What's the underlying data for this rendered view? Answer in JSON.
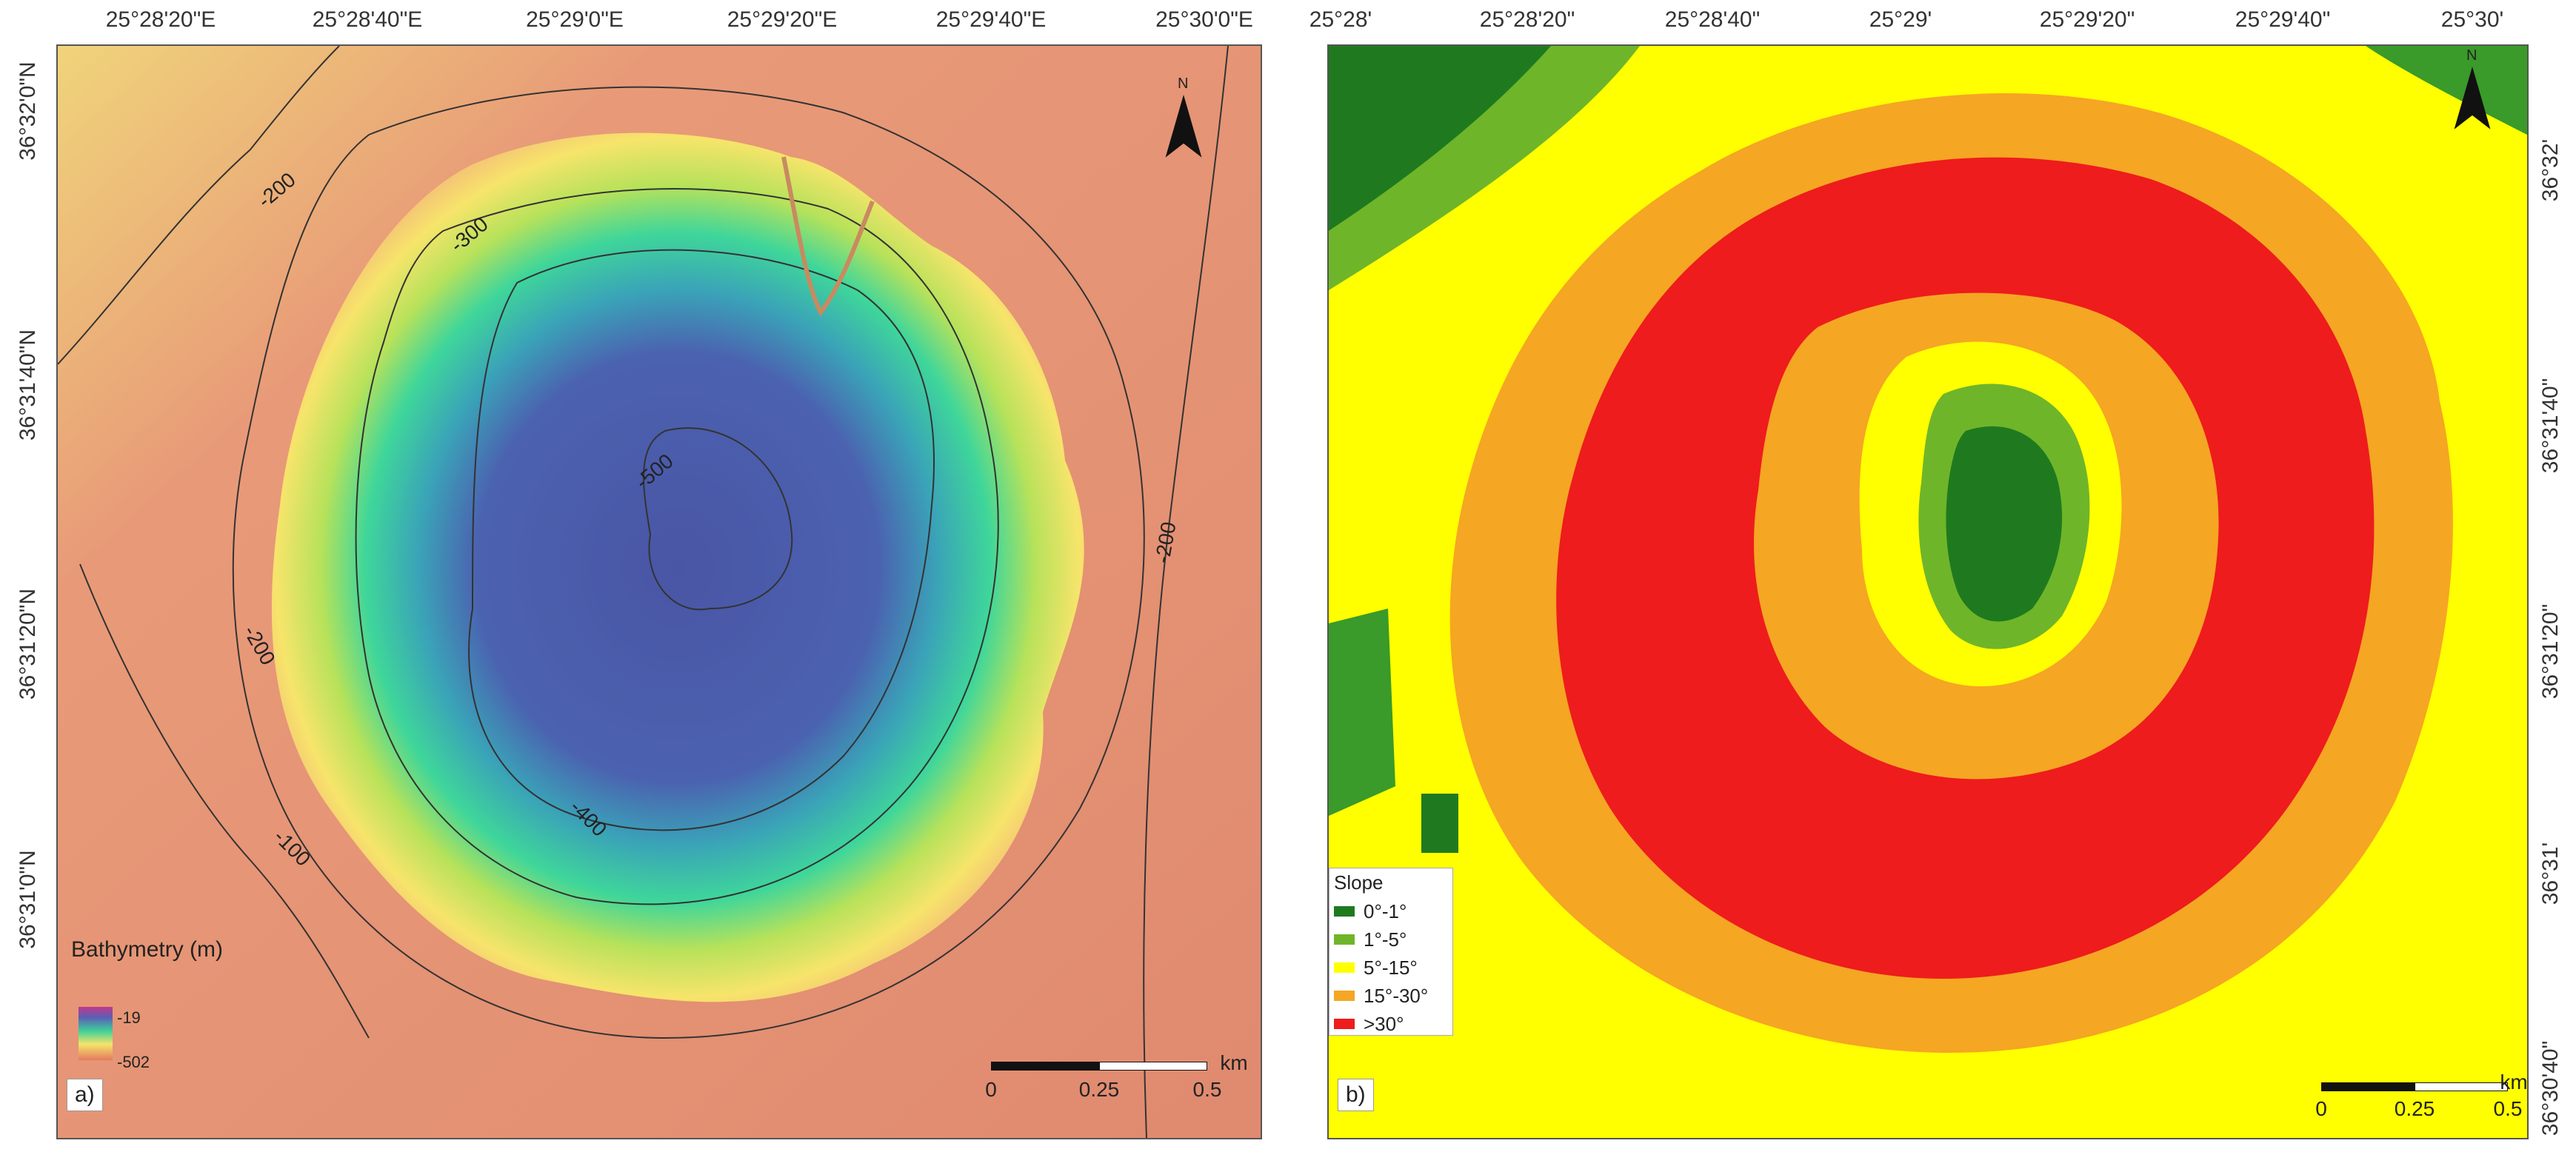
{
  "panel_a": {
    "letter": "a)",
    "top_ticks": [
      "25°28'20\"E",
      "25°28'40\"E",
      "25°29'0\"E",
      "25°29'20\"E",
      "25°29'40\"E",
      "25°30'0\"E"
    ],
    "left_ticks": [
      "36°32'0\"N",
      "36°31'40\"N",
      "36°31'20\"N",
      "36°31'0\"N"
    ],
    "legend_title": "Bathymetry (m)",
    "legend_max": "-19",
    "legend_min": "-502",
    "contours": [
      "-200",
      "-300",
      "-500",
      "-200",
      "-200",
      "-100",
      "-400"
    ],
    "scale_unit": "km",
    "scale_labels": [
      "0",
      "0.25",
      "0.5"
    ],
    "north_label": "N",
    "colors": {
      "deep": "#4a5aa8",
      "mid": "#3fd19a",
      "shallow": "#f5e46a",
      "background": "#e5856f"
    }
  },
  "panel_b": {
    "letter": "b)",
    "top_ticks": [
      "25°28'",
      "25°28'20\"",
      "25°28'40\"",
      "25°29'",
      "25°29'20\"",
      "25°29'40\"",
      "25°30'"
    ],
    "right_ticks": [
      "36°32'",
      "36°31'40\"",
      "36°31'20\"",
      "36°31'",
      "36°30'40\""
    ],
    "legend_title": "Slope",
    "legend_items": [
      {
        "label": "0°-1°",
        "color": "#1f7a1f"
      },
      {
        "label": "1°-5°",
        "color": "#6fb52a"
      },
      {
        "label": "5°-15°",
        "color": "#ffff00"
      },
      {
        "label": "15°-30°",
        "color": "#f5a623"
      },
      {
        "label": ">30°",
        "color": "#ee1c1c"
      }
    ],
    "scale_unit": "km",
    "scale_labels": [
      "0",
      "0.25",
      "0.5"
    ],
    "north_label": "N"
  }
}
